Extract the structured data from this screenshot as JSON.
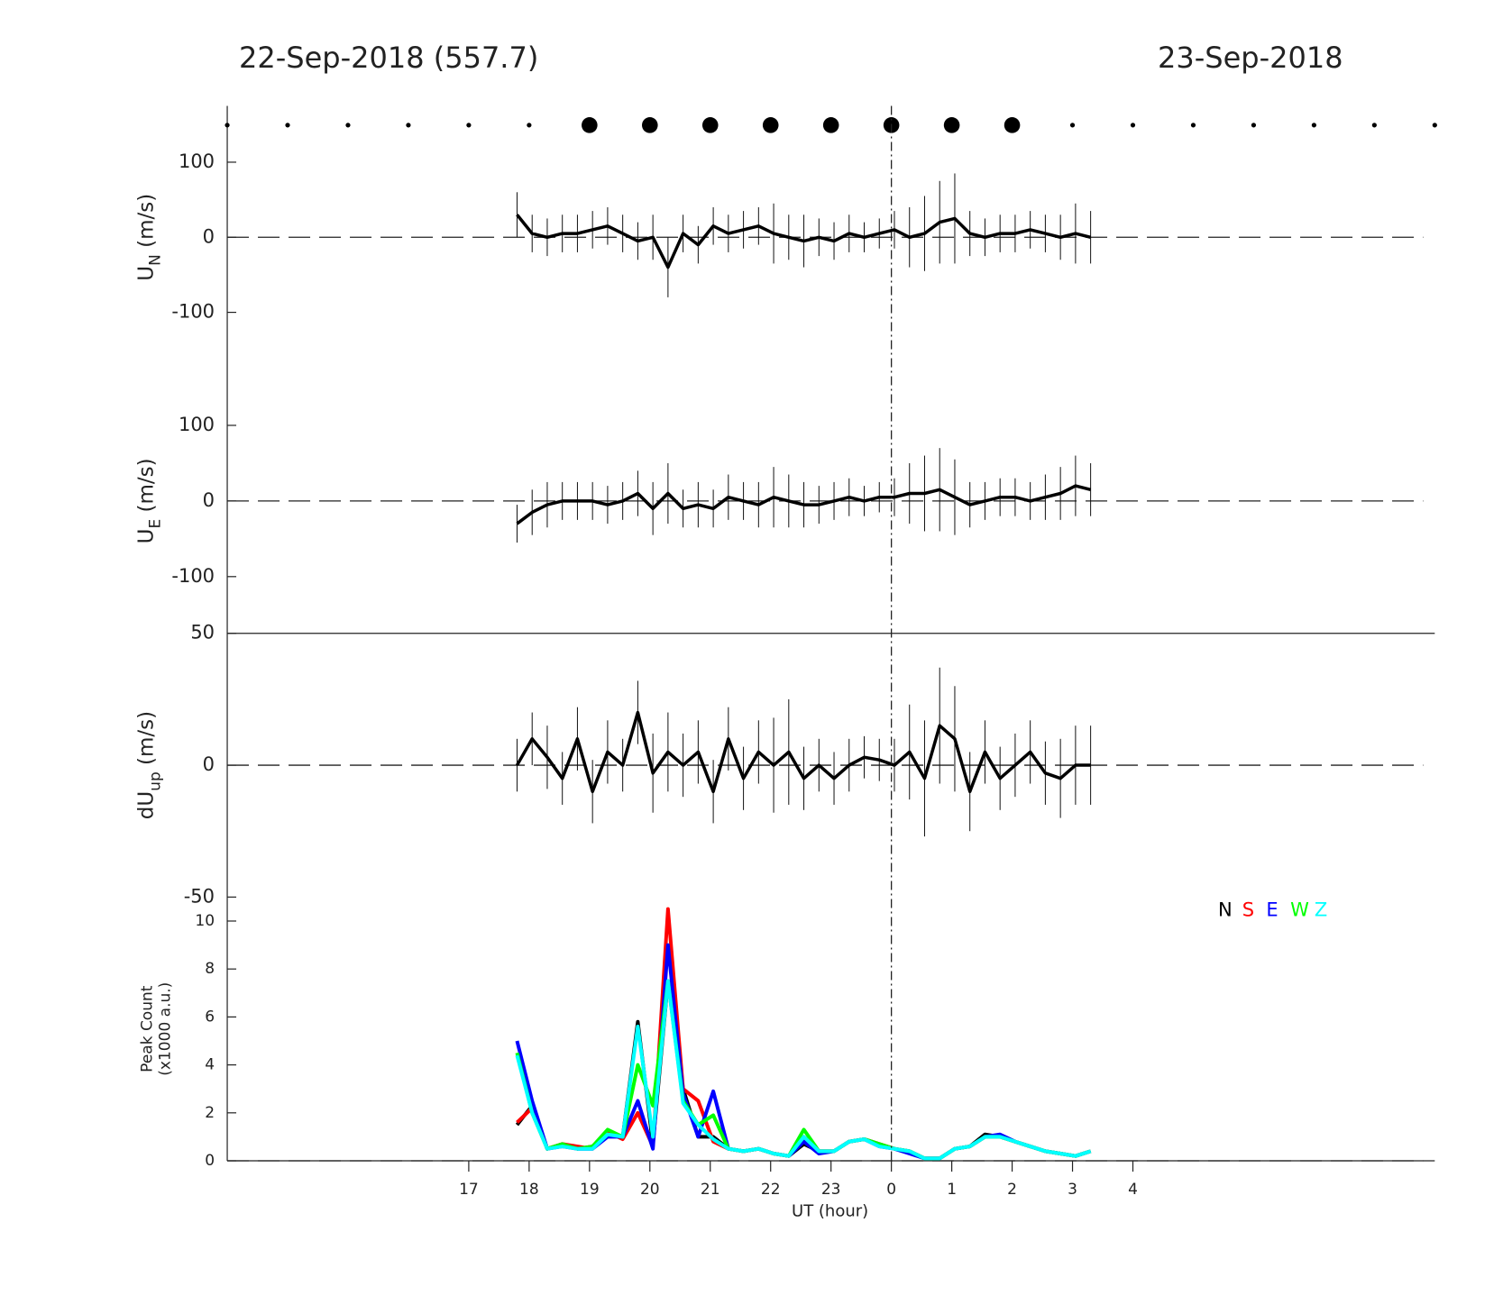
{
  "chart_data": [
    {
      "type": "errorbar",
      "title_left": "22-Sep-2018 (557.7)",
      "title_right": "23-Sep-2018",
      "hour_markers": [
        13,
        14,
        15,
        16,
        17,
        18,
        19,
        20,
        21,
        22,
        23,
        24,
        25,
        26,
        27,
        28,
        29,
        30,
        31,
        32,
        33
      ],
      "highlighted_hours": [
        19,
        20,
        21,
        22,
        23,
        24,
        25,
        26
      ],
      "vline_x": 24,
      "ylabel": "U",
      "ylabel_sub": "N",
      "ylabel_unit": " (m/s)",
      "xlim": [
        13,
        33
      ],
      "ylim": [
        -175,
        175
      ],
      "yticks": [
        -100,
        0,
        100
      ],
      "x": [
        17.8,
        18.05,
        18.3,
        18.55,
        18.8,
        19.05,
        19.3,
        19.55,
        19.8,
        20.05,
        20.3,
        20.55,
        20.8,
        21.05,
        21.3,
        21.55,
        21.8,
        22.05,
        22.3,
        22.55,
        22.8,
        23.05,
        23.3,
        23.55,
        23.8,
        24.05,
        24.3,
        24.55,
        24.8,
        25.05,
        25.3,
        25.55,
        25.8,
        26.05,
        26.3,
        26.55,
        26.8,
        27.05,
        27.3
      ],
      "values": [
        30,
        5,
        0,
        5,
        5,
        10,
        15,
        5,
        -5,
        0,
        -40,
        5,
        -10,
        15,
        5,
        10,
        15,
        5,
        0,
        -5,
        0,
        -5,
        5,
        0,
        5,
        10,
        0,
        5,
        20,
        25,
        5,
        0,
        5,
        5,
        10,
        5,
        0,
        5,
        0
      ],
      "errors": [
        30,
        25,
        25,
        25,
        25,
        25,
        25,
        25,
        25,
        30,
        40,
        25,
        25,
        25,
        25,
        25,
        25,
        40,
        30,
        35,
        25,
        25,
        25,
        20,
        20,
        25,
        40,
        50,
        55,
        60,
        30,
        25,
        25,
        25,
        25,
        25,
        30,
        40,
        35
      ]
    },
    {
      "type": "errorbar",
      "ylabel": "U",
      "ylabel_sub": "E",
      "ylabel_unit": " (m/s)",
      "xlim": [
        13,
        33
      ],
      "ylim": [
        -175,
        175
      ],
      "yticks": [
        -100,
        0,
        100
      ],
      "x": [
        17.8,
        18.05,
        18.3,
        18.55,
        18.8,
        19.05,
        19.3,
        19.55,
        19.8,
        20.05,
        20.3,
        20.55,
        20.8,
        21.05,
        21.3,
        21.55,
        21.8,
        22.05,
        22.3,
        22.55,
        22.8,
        23.05,
        23.3,
        23.55,
        23.8,
        24.05,
        24.3,
        24.55,
        24.8,
        25.05,
        25.3,
        25.55,
        25.8,
        26.05,
        26.3,
        26.55,
        26.8,
        27.05,
        27.3
      ],
      "values": [
        -30,
        -15,
        -5,
        0,
        0,
        0,
        -5,
        0,
        10,
        -10,
        10,
        -10,
        -5,
        -10,
        5,
        0,
        -5,
        5,
        0,
        -5,
        -5,
        0,
        5,
        0,
        5,
        5,
        10,
        10,
        15,
        5,
        -5,
        0,
        5,
        5,
        0,
        5,
        10,
        20,
        15
      ],
      "errors": [
        25,
        30,
        30,
        25,
        25,
        25,
        25,
        25,
        30,
        35,
        40,
        25,
        30,
        25,
        30,
        25,
        30,
        40,
        35,
        30,
        25,
        25,
        25,
        20,
        20,
        25,
        40,
        50,
        55,
        50,
        30,
        25,
        25,
        25,
        25,
        30,
        35,
        40,
        35
      ]
    },
    {
      "type": "errorbar",
      "ylabel": "dU",
      "ylabel_sub": "up",
      "ylabel_unit": " (m/s)",
      "xlim": [
        13,
        33
      ],
      "ylim": [
        -50,
        50
      ],
      "yticks": [
        -50,
        0,
        50
      ],
      "x": [
        17.8,
        18.05,
        18.3,
        18.55,
        18.8,
        19.05,
        19.3,
        19.55,
        19.8,
        20.05,
        20.3,
        20.55,
        20.8,
        21.05,
        21.3,
        21.55,
        21.8,
        22.05,
        22.3,
        22.55,
        22.8,
        23.05,
        23.3,
        23.55,
        23.8,
        24.05,
        24.3,
        24.55,
        24.8,
        25.05,
        25.3,
        25.55,
        25.8,
        26.05,
        26.3,
        26.55,
        26.8,
        27.05,
        27.3
      ],
      "values": [
        0,
        10,
        3,
        -5,
        10,
        -10,
        5,
        0,
        20,
        -3,
        5,
        0,
        5,
        -10,
        10,
        -5,
        5,
        0,
        5,
        -5,
        0,
        -5,
        0,
        3,
        2,
        0,
        5,
        -5,
        15,
        10,
        -10,
        5,
        -5,
        0,
        5,
        -3,
        -5,
        0,
        0
      ],
      "errors": [
        10,
        10,
        12,
        10,
        12,
        12,
        12,
        10,
        12,
        15,
        15,
        12,
        12,
        12,
        12,
        12,
        12,
        18,
        20,
        12,
        10,
        10,
        10,
        8,
        8,
        10,
        18,
        22,
        22,
        20,
        15,
        12,
        12,
        12,
        12,
        12,
        15,
        15,
        15
      ]
    },
    {
      "type": "line",
      "ylabel_lines": [
        "Peak Count",
        "(x1000 a.u.)"
      ],
      "xlabel": "UT (hour)",
      "xlim": [
        13,
        33
      ],
      "ylim": [
        0,
        11
      ],
      "yticks": [
        0,
        2,
        4,
        6,
        8,
        10
      ],
      "xticks": [
        17,
        18,
        19,
        20,
        21,
        22,
        23,
        {
          "value": 24,
          "label": "0"
        },
        {
          "value": 25,
          "label": "1"
        },
        {
          "value": 26,
          "label": "2"
        },
        {
          "value": 27,
          "label": "3"
        },
        {
          "value": 28,
          "label": "4"
        }
      ],
      "x": [
        17.8,
        18.05,
        18.3,
        18.55,
        18.8,
        19.05,
        19.3,
        19.55,
        19.8,
        20.05,
        20.3,
        20.55,
        20.8,
        21.05,
        21.3,
        21.55,
        21.8,
        22.05,
        22.3,
        22.55,
        22.8,
        23.05,
        23.3,
        23.55,
        23.8,
        24.05,
        24.3,
        24.55,
        24.8,
        25.05,
        25.3,
        25.55,
        25.8,
        26.05,
        26.3,
        26.55,
        26.8,
        27.05,
        27.3
      ],
      "series": [
        {
          "name": "N",
          "color": "#000000",
          "values": [
            1.5,
            2.3,
            0.5,
            0.7,
            0.5,
            0.6,
            1.2,
            1.0,
            5.8,
            0.7,
            7.5,
            3.0,
            1.0,
            1.0,
            0.5,
            0.4,
            0.5,
            0.3,
            0.2,
            0.7,
            0.4,
            0.4,
            0.8,
            0.9,
            0.7,
            0.5,
            0.4,
            0.1,
            0.1,
            0.5,
            0.6,
            1.1,
            1.0,
            0.8,
            0.6,
            0.4,
            0.3,
            0.2,
            0.4
          ]
        },
        {
          "name": "S",
          "color": "#ff0000",
          "values": [
            1.6,
            2.2,
            0.5,
            0.7,
            0.6,
            0.5,
            1.2,
            0.9,
            2.0,
            0.6,
            10.5,
            3.0,
            2.5,
            0.8,
            0.5,
            0.4,
            0.5,
            0.3,
            0.2,
            1.0,
            0.4,
            0.4,
            0.8,
            0.9,
            0.7,
            0.5,
            0.4,
            0.1,
            0.1,
            0.5,
            0.6,
            1.0,
            1.0,
            0.8,
            0.6,
            0.4,
            0.3,
            0.2,
            0.4
          ]
        },
        {
          "name": "E",
          "color": "#0000ff",
          "values": [
            5.0,
            2.5,
            0.5,
            0.6,
            0.5,
            0.5,
            1.0,
            1.0,
            2.5,
            0.5,
            9.0,
            2.8,
            1.0,
            2.9,
            0.5,
            0.4,
            0.5,
            0.3,
            0.2,
            0.8,
            0.3,
            0.4,
            0.8,
            0.9,
            0.6,
            0.5,
            0.3,
            0.1,
            0.1,
            0.5,
            0.6,
            1.0,
            1.1,
            0.8,
            0.6,
            0.4,
            0.3,
            0.2,
            0.4
          ]
        },
        {
          "name": "W",
          "color": "#00ff00",
          "values": [
            4.5,
            2.0,
            0.5,
            0.7,
            0.5,
            0.6,
            1.3,
            1.0,
            4.0,
            2.3,
            7.5,
            2.5,
            1.5,
            1.9,
            0.5,
            0.4,
            0.5,
            0.3,
            0.2,
            1.3,
            0.4,
            0.4,
            0.8,
            0.9,
            0.7,
            0.5,
            0.4,
            0.1,
            0.1,
            0.5,
            0.6,
            1.0,
            1.0,
            0.8,
            0.6,
            0.4,
            0.3,
            0.2,
            0.4
          ]
        },
        {
          "name": "Z",
          "color": "#00ffff",
          "values": [
            4.4,
            2.0,
            0.5,
            0.6,
            0.5,
            0.5,
            1.1,
            1.0,
            5.6,
            1.0,
            7.5,
            2.4,
            1.5,
            0.9,
            0.5,
            0.4,
            0.5,
            0.3,
            0.2,
            1.0,
            0.4,
            0.4,
            0.8,
            0.9,
            0.6,
            0.5,
            0.4,
            0.1,
            0.1,
            0.5,
            0.6,
            1.0,
            1.0,
            0.8,
            0.6,
            0.4,
            0.3,
            0.2,
            0.4
          ]
        }
      ]
    }
  ]
}
